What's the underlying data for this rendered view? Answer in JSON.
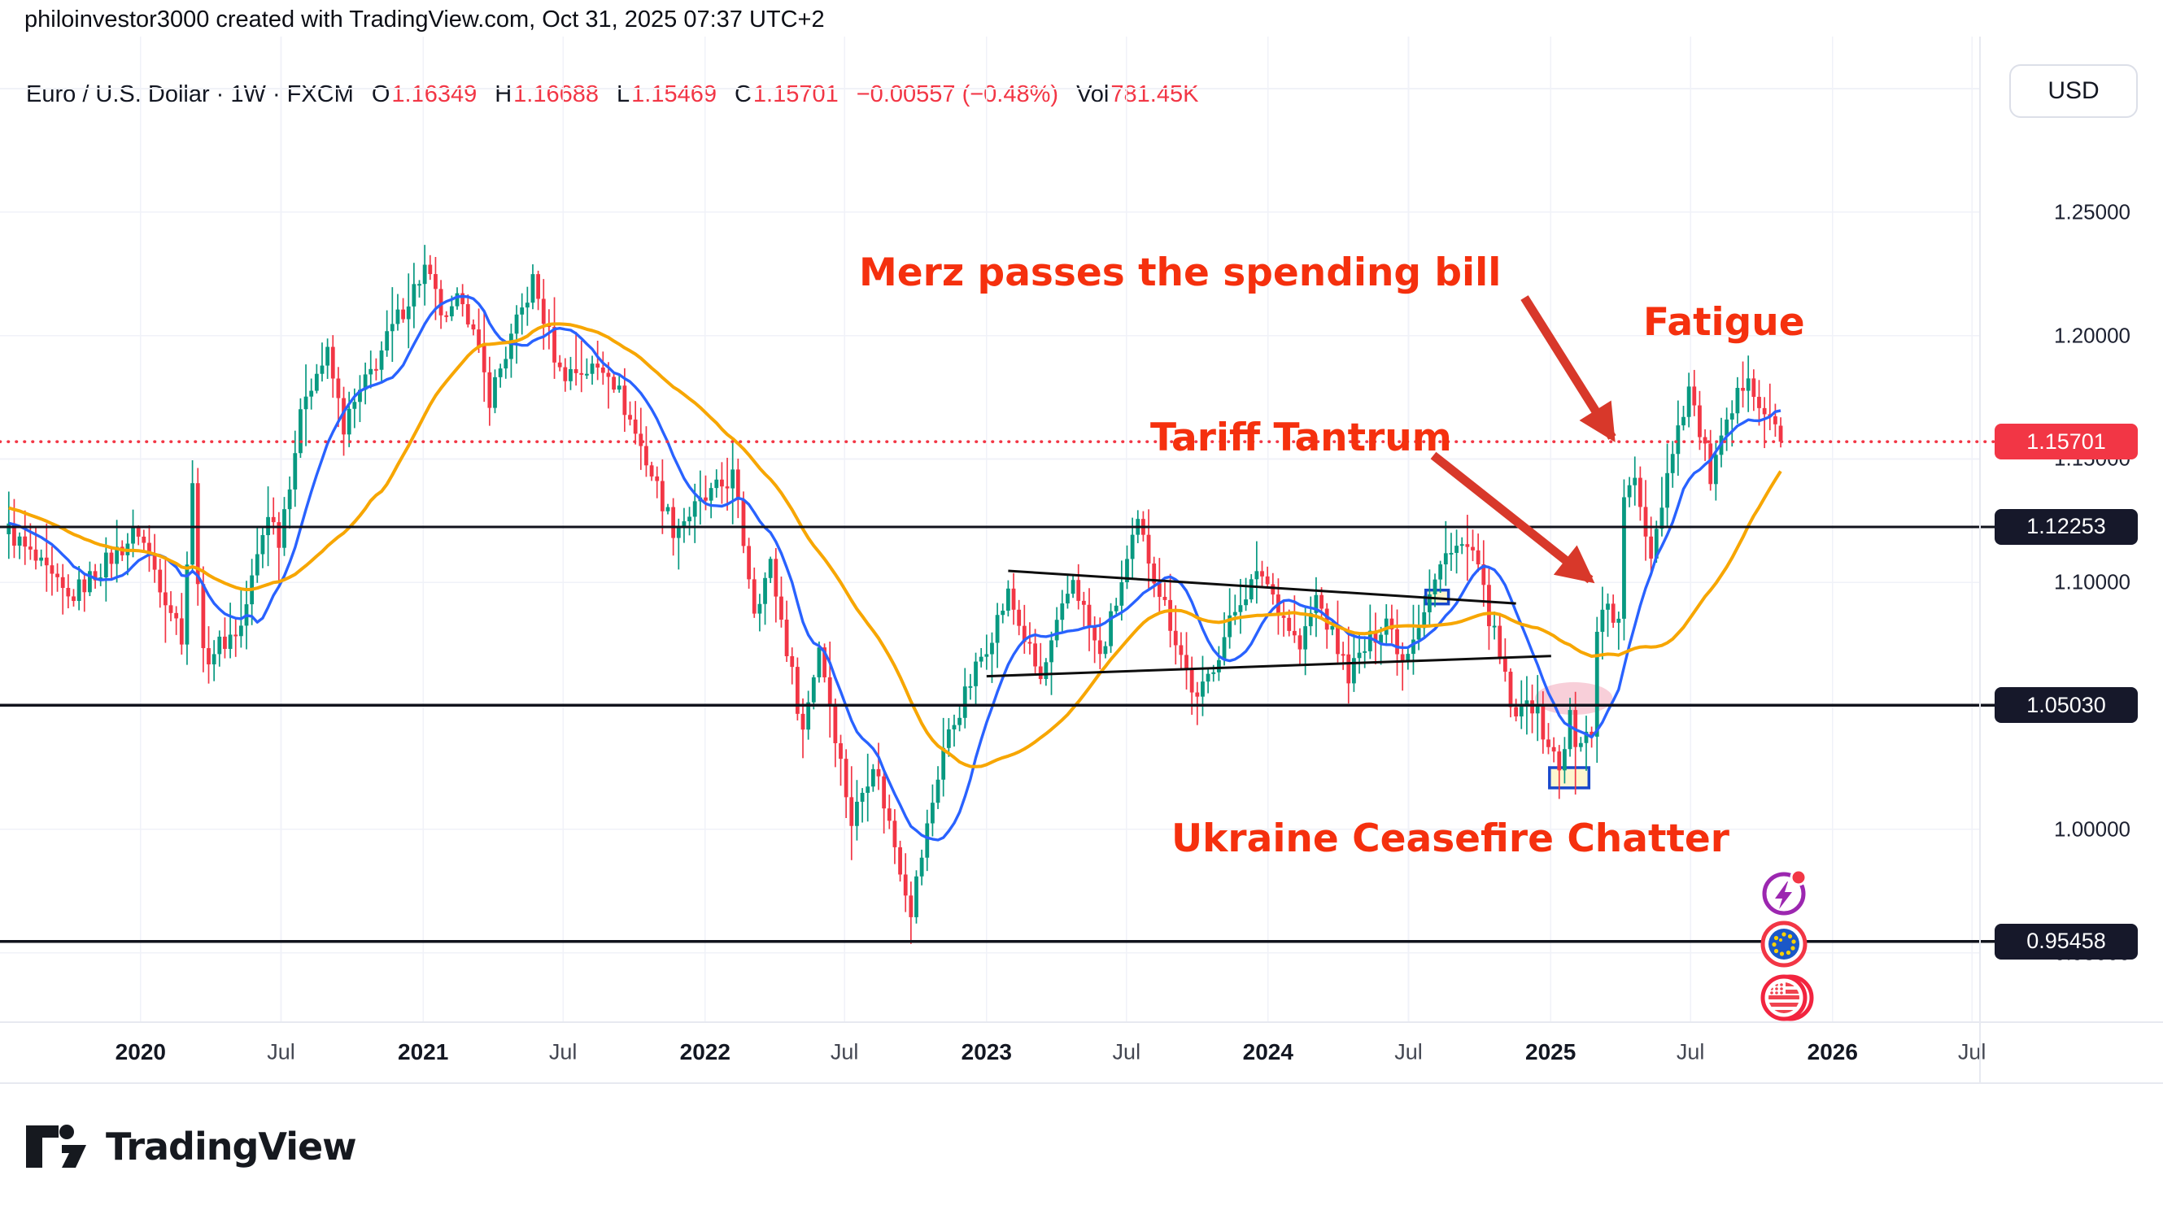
{
  "attribution": "philoinvestor3000 created with TradingView.com, Oct 31, 2025 07:37 UTC+2",
  "currency_button": "USD",
  "symbol_bar": {
    "title": "Euro / U.S. Dollar · 1W · FXCM",
    "fields": [
      {
        "label": "O",
        "value": "1.16349"
      },
      {
        "label": "H",
        "value": "1.16688"
      },
      {
        "label": "L",
        "value": "1.15469"
      },
      {
        "label": "C",
        "value": "1.15701"
      }
    ],
    "change": "−0.00557 (−0.48%)",
    "vol_label": "Vol",
    "vol_value": "781.45K"
  },
  "annotations": {
    "merz": "Merz passes the spending bill",
    "fatigue": "Fatigue",
    "tariff": "Tariff Tantrum",
    "ukraine": "Ukraine Ceasefire Chatter",
    "text_color": "#f5300e",
    "arrow_color": "#d8382a"
  },
  "logo_text": "TradingView",
  "price_axis": {
    "ticks": [
      {
        "label": "1.25000",
        "price": 1.25
      },
      {
        "label": "1.20000",
        "price": 1.2
      },
      {
        "label": "1.15000",
        "price": 1.15
      },
      {
        "label": "1.10000",
        "price": 1.1
      },
      {
        "label": "1.00000",
        "price": 1.0
      },
      {
        "label": "0.95000",
        "price": 0.95
      }
    ],
    "badges": [
      {
        "label": "1.15701",
        "price": 1.15701,
        "type": "last-price",
        "bg": "#f23645"
      },
      {
        "label": "1.12253",
        "price": 1.12253,
        "type": "level",
        "bg": "#16182a"
      },
      {
        "label": "1.05030",
        "price": 1.0503,
        "type": "level",
        "bg": "#16182a"
      },
      {
        "label": "0.95458",
        "price": 0.95458,
        "type": "level",
        "bg": "#16182a"
      }
    ]
  },
  "time_axis": [
    {
      "label": "2020",
      "t": 24.4,
      "major": true
    },
    {
      "label": "Jul",
      "t": 50.4,
      "major": false
    },
    {
      "label": "2021",
      "t": 76.7,
      "major": true
    },
    {
      "label": "Jul",
      "t": 102.6,
      "major": false
    },
    {
      "label": "2022",
      "t": 128.9,
      "major": true
    },
    {
      "label": "Jul",
      "t": 154.7,
      "major": false
    },
    {
      "label": "2023",
      "t": 181.0,
      "major": true
    },
    {
      "label": "Jul",
      "t": 206.9,
      "major": false
    },
    {
      "label": "2024",
      "t": 233.1,
      "major": true
    },
    {
      "label": "Jul",
      "t": 259.1,
      "major": false
    },
    {
      "label": "2025",
      "t": 285.4,
      "major": true
    },
    {
      "label": "Jul",
      "t": 311.3,
      "major": false
    },
    {
      "label": "2026",
      "t": 337.6,
      "major": true
    },
    {
      "label": "Jul",
      "t": 363.4,
      "major": false
    }
  ],
  "side_icons": [
    {
      "name": "flash-event-icon",
      "color": "#9c27b0",
      "badge_color": "#f23645"
    },
    {
      "name": "eu-flag-icon",
      "ring": "#f23645",
      "field": "#1b58c8",
      "stars": "#ffd300"
    },
    {
      "name": "us-flag-icon",
      "ring": "#f2243f",
      "stripe": "#f0434f"
    }
  ],
  "chart_data": {
    "type": "candlestick",
    "symbol": "EURUSD",
    "title": "Euro / U.S. Dollar",
    "timeframe": "1W",
    "exchange": "FXCM",
    "y_axis": {
      "visible_min": 0.93,
      "visible_max": 1.3,
      "grid_step": 0.05
    },
    "x_axis": {
      "first_week": "2019-07-14",
      "weeks": 329,
      "grid": "half-year ticks"
    },
    "colors": {
      "up": "#089981",
      "down": "#f23645",
      "ma_fast": "#2962ff",
      "ma_slow": "#f7a600",
      "level_line": "#11131c",
      "current_line": "#f23645",
      "grid": "#f0f2f8"
    },
    "ma_windows": {
      "fast": 12,
      "slow": 35
    },
    "last_candle": {
      "open": 1.16349,
      "high": 1.16688,
      "low": 1.15469,
      "close": 1.15701
    },
    "current_price": 1.15701,
    "horizontal_levels": [
      1.12253,
      1.0503,
      0.95458
    ],
    "anchors": [
      [
        -45,
        1.152
      ],
      [
        -30,
        1.139
      ],
      [
        -15,
        1.128
      ],
      [
        0,
        1.121
      ],
      [
        11,
        1.093
      ],
      [
        24,
        1.121
      ],
      [
        32,
        1.079
      ],
      [
        34,
        1.138
      ],
      [
        36,
        1.069
      ],
      [
        43,
        1.082
      ],
      [
        48,
        1.129
      ],
      [
        50,
        1.118
      ],
      [
        55,
        1.178
      ],
      [
        59,
        1.192
      ],
      [
        62,
        1.163
      ],
      [
        72,
        1.207
      ],
      [
        77,
        1.227
      ],
      [
        81,
        1.204
      ],
      [
        84,
        1.217
      ],
      [
        89,
        1.175
      ],
      [
        97,
        1.222
      ],
      [
        102,
        1.185
      ],
      [
        111,
        1.187
      ],
      [
        117,
        1.155
      ],
      [
        123,
        1.122
      ],
      [
        134,
        1.143
      ],
      [
        138,
        1.09
      ],
      [
        141,
        1.107
      ],
      [
        147,
        1.04
      ],
      [
        150,
        1.075
      ],
      [
        156,
        1.003
      ],
      [
        160,
        1.028
      ],
      [
        167,
        0.968
      ],
      [
        173,
        1.033
      ],
      [
        180,
        1.07
      ],
      [
        185,
        1.095
      ],
      [
        191,
        1.06
      ],
      [
        197,
        1.102
      ],
      [
        202,
        1.069
      ],
      [
        209,
        1.123
      ],
      [
        215,
        1.084
      ],
      [
        220,
        1.051
      ],
      [
        228,
        1.094
      ],
      [
        232,
        1.104
      ],
      [
        239,
        1.073
      ],
      [
        242,
        1.094
      ],
      [
        248,
        1.063
      ],
      [
        255,
        1.086
      ],
      [
        258,
        1.069
      ],
      [
        267,
        1.116
      ],
      [
        271,
        1.112
      ],
      [
        275,
        1.078
      ],
      [
        279,
        1.042
      ],
      [
        281,
        1.056
      ],
      [
        287,
        1.024
      ],
      [
        289,
        1.046
      ],
      [
        290,
        1.032
      ],
      [
        293,
        1.04
      ],
      [
        294,
        1.083
      ],
      [
        296,
        1.092
      ],
      [
        298,
        1.082
      ],
      [
        299,
        1.136
      ],
      [
        301,
        1.139
      ],
      [
        304,
        1.112
      ],
      [
        308,
        1.155
      ],
      [
        311,
        1.179
      ],
      [
        315,
        1.143
      ],
      [
        322,
        1.187
      ],
      [
        324,
        1.172
      ],
      [
        326,
        1.165
      ],
      [
        327,
        1.163
      ],
      [
        328,
        1.15701
      ]
    ],
    "special_wicks": [
      {
        "t": 34,
        "high": 1.1495
      },
      {
        "t": 36,
        "low": 1.0636
      },
      {
        "t": 77,
        "high": 1.2349
      },
      {
        "t": 97,
        "high": 1.2266
      },
      {
        "t": 134,
        "high": 1.1495
      },
      {
        "t": 147,
        "low": 1.0349
      },
      {
        "t": 167,
        "low": 0.9536
      },
      {
        "t": 209,
        "high": 1.1276
      },
      {
        "t": 267,
        "high": 1.1201
      },
      {
        "t": 271,
        "high": 1.1214
      },
      {
        "t": 287,
        "low": 1.0178
      },
      {
        "t": 290,
        "low": 1.0141
      },
      {
        "t": 301,
        "high": 1.151
      },
      {
        "t": 322,
        "high": 1.1919
      }
    ],
    "trendlines": [
      {
        "name": "wedge-upper",
        "t1": 185.0,
        "p1": 1.1047,
        "t2": 279.0,
        "p2": 1.0915
      },
      {
        "name": "wedge-lower",
        "t1": 181.0,
        "p1": 1.062,
        "t2": 285.5,
        "p2": 1.0702
      }
    ],
    "highlight_boxes": [
      {
        "t1": 262.3,
        "t2": 266.5,
        "p1": 1.0913,
        "p2": 1.0969
      },
      {
        "t1": 285.2,
        "t2": 292.5,
        "p1": 1.0168,
        "p2": 1.025
      }
    ],
    "highlight_ellipse": {
      "t_center": 289.7,
      "p_center": 1.053,
      "t_radius": 7.2,
      "p_radius": 0.0066
    }
  }
}
